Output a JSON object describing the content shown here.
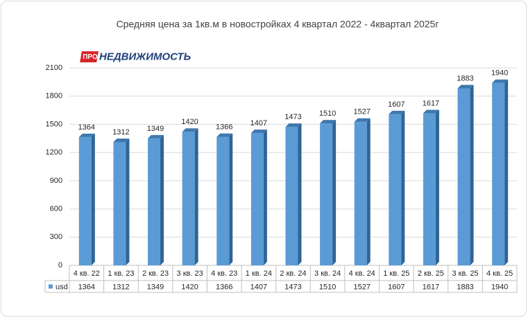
{
  "chart_data": {
    "type": "bar",
    "title": "Средняя цена за 1кв.м в новостройках 4 квартал 2022 - 4квартал 2025г",
    "logo": {
      "badge": "ПРО",
      "text": "НЕДВИЖИМОСТЬ"
    },
    "categories": [
      "4 кв. 22",
      "1 кв. 23",
      "2 кв. 23",
      "3 кв. 23",
      "4 кв. 23",
      "1 кв. 24",
      "2 кв. 24",
      "3 кв. 24",
      "4 кв. 24",
      "1 кв. 25",
      "2 кв. 25",
      "3 кв. 25",
      "4 кв. 25"
    ],
    "series": [
      {
        "name": "usd",
        "color": "#5b9bd5",
        "values": [
          1364,
          1312,
          1349,
          1420,
          1366,
          1407,
          1473,
          1510,
          1527,
          1607,
          1617,
          1883,
          1940
        ]
      }
    ],
    "ylim": [
      0,
      2100
    ],
    "yticks": [
      0,
      300,
      600,
      900,
      1200,
      1500,
      1800,
      2100
    ],
    "grid": true
  }
}
